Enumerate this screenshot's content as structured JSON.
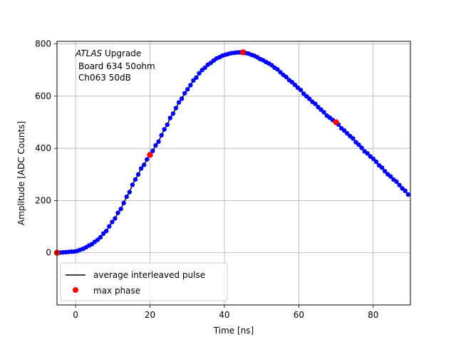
{
  "chart_data": {
    "type": "scatter",
    "xlabel": "Time [ns]",
    "ylabel": "Amplitude [ADC Counts]",
    "xlim": [
      -5,
      90
    ],
    "ylim": [
      -200,
      810
    ],
    "xticks": [
      0,
      20,
      40,
      60,
      80
    ],
    "yticks": [
      0,
      200,
      400,
      600,
      800
    ],
    "grid": true,
    "annotation": {
      "line1_italic": "ATLAS",
      "line1_rest": " Upgrade",
      "line2": "Board 634 50ohm",
      "line3": "Ch063 50dB"
    },
    "legend": {
      "placement": "lower-left",
      "entries": [
        "average interleaved pulse",
        "max phase"
      ]
    },
    "series": [
      {
        "name": "average interleaved pulse",
        "style": "blue-dots-black-line",
        "color": "#0000ff",
        "line_color": "#000000",
        "x_start": -5,
        "x_step": 0.78,
        "profile": [
          [
            -5,
            0
          ],
          [
            0,
            5
          ],
          [
            2,
            15
          ],
          [
            4,
            30
          ],
          [
            6,
            50
          ],
          [
            8,
            80
          ],
          [
            10,
            120
          ],
          [
            12,
            165
          ],
          [
            14,
            220
          ],
          [
            16,
            280
          ],
          [
            18,
            330
          ],
          [
            20,
            375
          ],
          [
            22,
            420
          ],
          [
            24,
            475
          ],
          [
            26,
            530
          ],
          [
            28,
            580
          ],
          [
            30,
            625
          ],
          [
            32,
            665
          ],
          [
            34,
            700
          ],
          [
            36,
            725
          ],
          [
            38,
            745
          ],
          [
            40,
            758
          ],
          [
            42,
            765
          ],
          [
            44,
            768
          ],
          [
            46,
            765
          ],
          [
            48,
            755
          ],
          [
            50,
            740
          ],
          [
            52,
            725
          ],
          [
            54,
            705
          ],
          [
            56,
            680
          ],
          [
            58,
            655
          ],
          [
            60,
            630
          ],
          [
            62,
            600
          ],
          [
            64,
            575
          ],
          [
            66,
            548
          ],
          [
            68,
            520
          ],
          [
            70,
            500
          ],
          [
            72,
            470
          ],
          [
            74,
            445
          ],
          [
            76,
            415
          ],
          [
            78,
            385
          ],
          [
            80,
            360
          ],
          [
            82,
            330
          ],
          [
            84,
            300
          ],
          [
            86,
            275
          ],
          [
            88,
            245
          ],
          [
            90,
            215
          ]
        ]
      },
      {
        "name": "max phase",
        "color": "#ff0000",
        "x": [
          -5,
          20,
          45,
          70
        ],
        "y": [
          0,
          375,
          768,
          500
        ]
      }
    ]
  }
}
